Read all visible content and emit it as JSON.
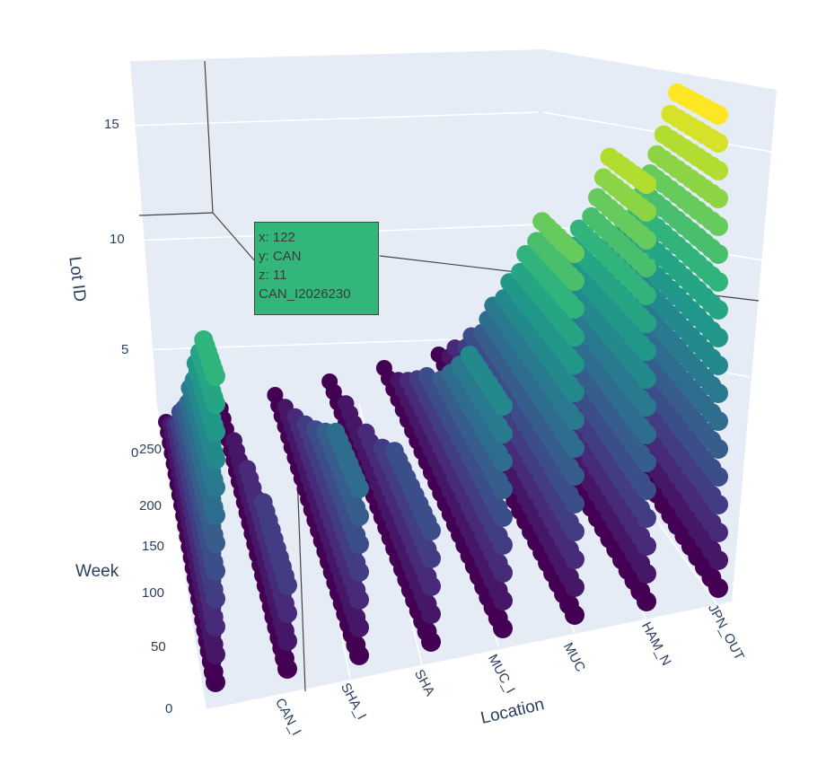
{
  "chart_data": {
    "type": "scatter3d",
    "x_axis": {
      "title": "Week",
      "range": [
        0,
        250
      ],
      "tick_labels": [
        "0",
        "50",
        "100",
        "150",
        "200",
        "250"
      ]
    },
    "y_axis": {
      "title": "Location",
      "categories": [
        "CAN",
        "CAN_I",
        "SHA_I",
        "SHA",
        "MUC_I",
        "MUC",
        "HAM_N",
        "JPN_OUT"
      ],
      "tick_labels": [
        "CAN_I",
        "SHA_I",
        "SHA",
        "MUC_I",
        "MUC",
        "HAM_N",
        "JPN_OUT"
      ]
    },
    "z_axis": {
      "title": "Lot ID",
      "range": [
        0,
        17
      ],
      "tick_labels": [
        "0",
        "5",
        "10",
        "15"
      ]
    },
    "colorscale": "Viridis",
    "series": [
      {
        "location": "CAN",
        "max_lot": 11,
        "week_range": [
          0,
          250
        ]
      },
      {
        "location": "CAN_I",
        "max_lot": 3,
        "week_range": [
          0,
          250
        ]
      },
      {
        "location": "SHA_I",
        "max_lot": 6,
        "week_range": [
          0,
          250
        ]
      },
      {
        "location": "SHA",
        "max_lot": 4,
        "week_range": [
          0,
          250
        ]
      },
      {
        "location": "MUC_I",
        "max_lot": 8,
        "week_range": [
          0,
          250
        ]
      },
      {
        "location": "MUC",
        "max_lot": 13,
        "week_range": [
          0,
          250
        ]
      },
      {
        "location": "HAM_N",
        "max_lot": 15,
        "week_range": [
          0,
          250
        ]
      },
      {
        "location": "JPN_OUT",
        "max_lot": 17,
        "week_range": [
          0,
          250
        ]
      }
    ],
    "hover": {
      "x": "x: 122",
      "y": "y: CAN",
      "z": "z: 11",
      "label": "CAN_I2026230"
    }
  }
}
